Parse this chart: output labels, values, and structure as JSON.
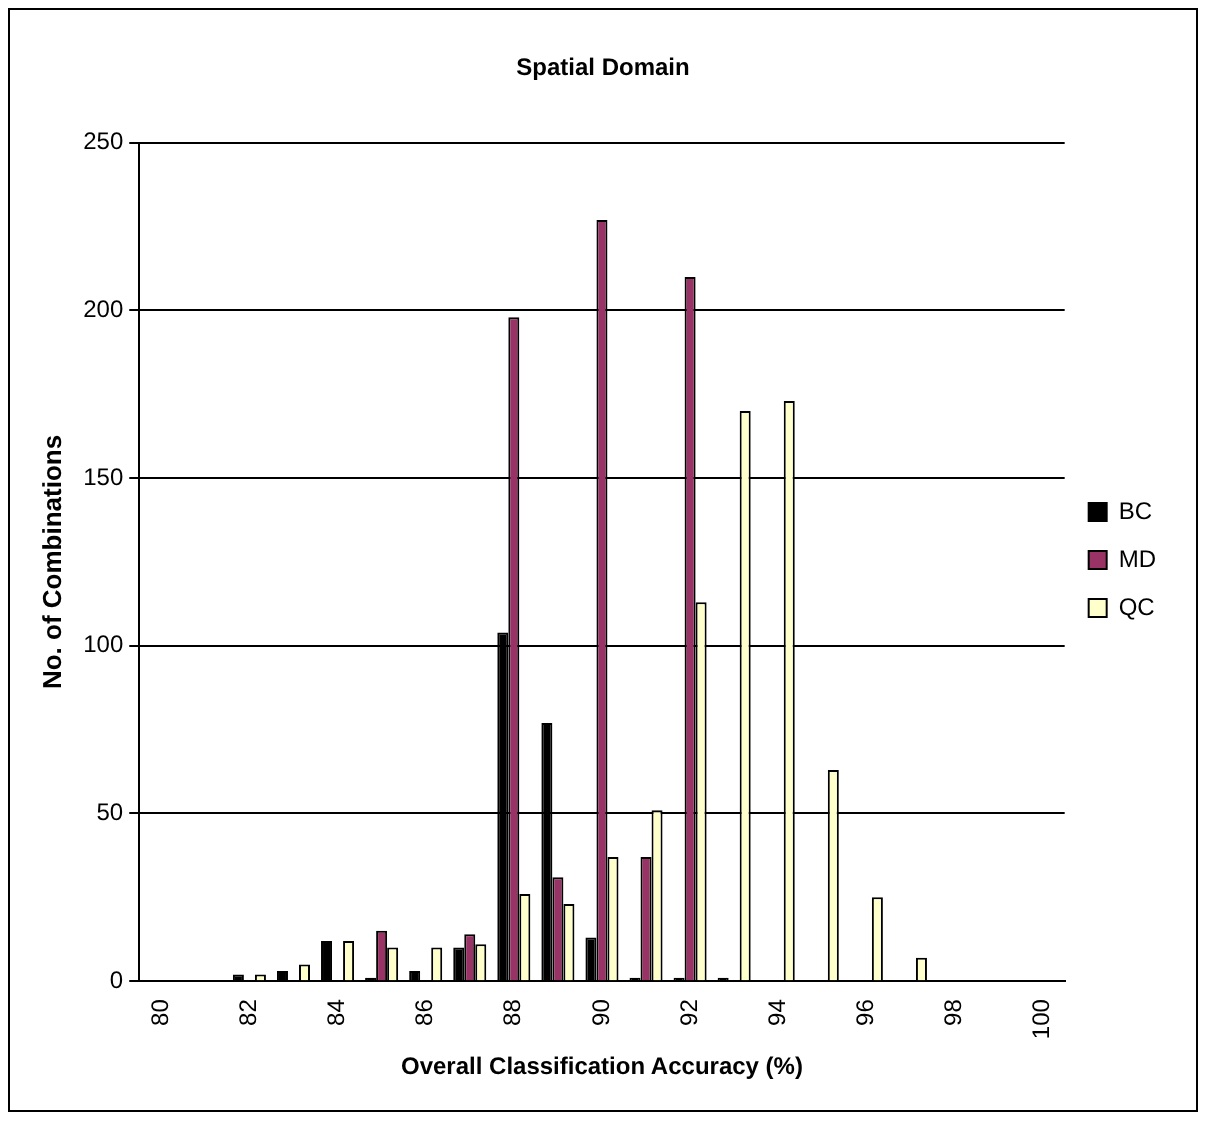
{
  "chart_data": {
    "type": "bar",
    "title": "Spatial Domain",
    "xlabel": "Overall Classification Accuracy (%)",
    "ylabel": "No. of Combinations",
    "categories": [
      "80",
      null,
      "82",
      null,
      "84",
      null,
      "86",
      null,
      "88",
      null,
      "90",
      null,
      "92",
      null,
      "94",
      null,
      "96",
      null,
      "98",
      null,
      "100"
    ],
    "series": [
      {
        "name": "BC",
        "color": "#000000",
        "values": [
          0,
          0,
          2,
          3,
          12,
          1,
          3,
          10,
          104,
          77,
          13,
          1,
          1,
          1,
          0,
          0,
          0,
          0,
          0,
          0,
          0
        ]
      },
      {
        "name": "MD",
        "color": "#993366",
        "values": [
          0,
          0,
          0,
          0,
          0,
          15,
          0,
          14,
          198,
          31,
          227,
          37,
          210,
          0,
          0,
          0,
          0,
          0,
          0,
          0,
          0
        ]
      },
      {
        "name": "QC",
        "color": "#ffffcc",
        "values": [
          0,
          0,
          2,
          5,
          12,
          10,
          10,
          11,
          26,
          23,
          37,
          51,
          113,
          170,
          173,
          63,
          25,
          7,
          0,
          0,
          0
        ]
      }
    ],
    "ylim": [
      0,
      250
    ],
    "yticks": [
      0,
      50,
      100,
      150,
      200,
      250
    ],
    "grid": "y",
    "legend": "right"
  }
}
